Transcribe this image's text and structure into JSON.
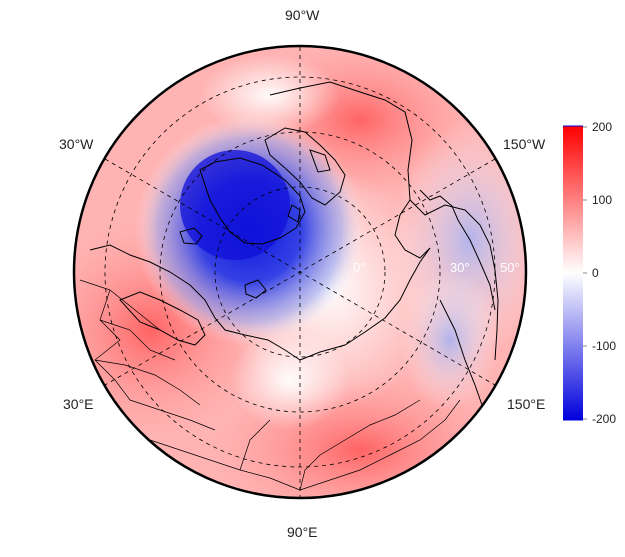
{
  "map": {
    "projection": "north-polar-stereographic",
    "longitude_labels": [
      "90°W",
      "30°W",
      "150°W",
      "30°E",
      "150°E",
      "90°E"
    ],
    "latitude_labels": [
      "0°",
      "30°",
      "50°"
    ],
    "field_description": "anomaly field, diverging blue-white-red",
    "colors": {
      "negative": "#0000dd",
      "zero": "#ffffff",
      "positive": "#ff0000",
      "coastline": "#000000",
      "graticule": "#000000"
    }
  },
  "colorbar": {
    "ticks": [
      "200",
      "100",
      "0",
      "-100",
      "-200"
    ],
    "range": [
      -200,
      200
    ]
  }
}
